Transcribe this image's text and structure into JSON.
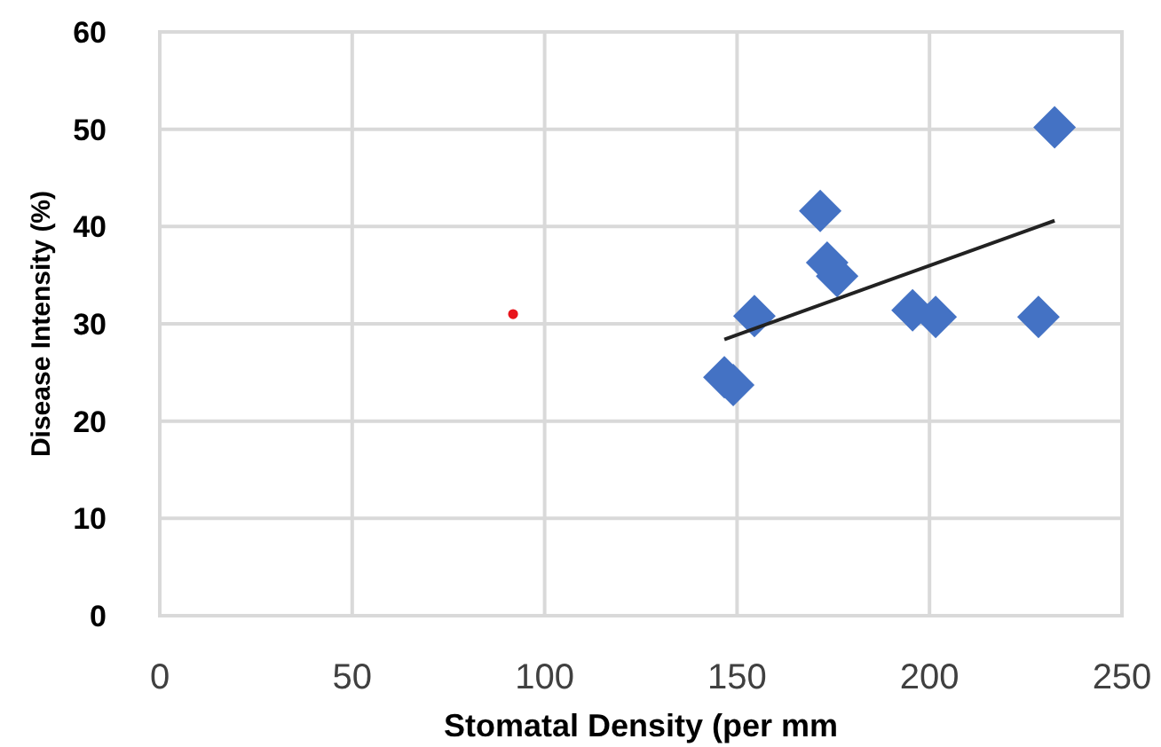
{
  "chart_data": {
    "type": "scatter",
    "xlabel": "Stomatal Density (per mm",
    "ylabel": "Disease Intensity (%)",
    "xlim": [
      0,
      250
    ],
    "xticks": [
      0,
      50,
      100,
      150,
      200,
      250
    ],
    "ylim": [
      0,
      60
    ],
    "yticks": [
      0,
      10,
      20,
      30,
      40,
      50,
      60
    ],
    "grid": true,
    "series": [
      {
        "marker": "diamond",
        "color": "#4472c4",
        "x": [
          146.7,
          149,
          154.5,
          171.6,
          173.4,
          176,
          195.6,
          201.6,
          228.3,
          232.5
        ],
        "values": [
          24.5,
          23.7,
          30.8,
          41.6,
          36.3,
          34.9,
          31.4,
          30.7,
          30.7,
          50.2
        ]
      },
      {
        "marker": "circle",
        "color": "#e8141b",
        "x": [
          91.8
        ],
        "values": [
          31
        ]
      },
      {
        "type": "line",
        "marker": "none",
        "line_style": "solid",
        "color": "#222222",
        "x": [
          146.7,
          232.5
        ],
        "values": [
          28.4,
          40.6
        ]
      }
    ]
  }
}
